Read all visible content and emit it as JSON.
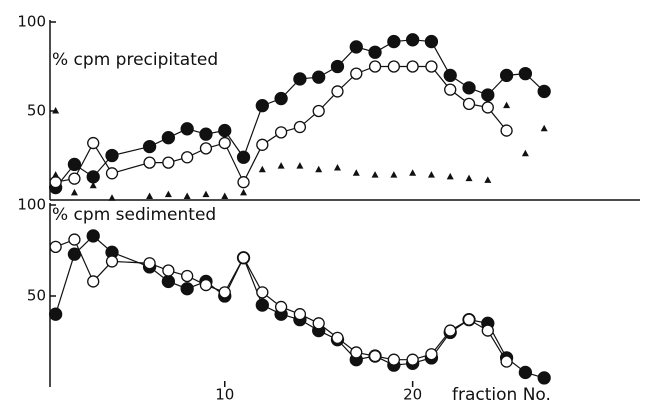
{
  "chart_data": [
    {
      "type": "scatter",
      "ylabel": "% cpm precipitated",
      "xlim": [
        0.7,
        32.1
      ],
      "ylim": [
        0,
        100
      ],
      "yticks": [
        50,
        100
      ],
      "series": [
        {
          "color": "#111111",
          "marker": "filled-circle",
          "line": true,
          "x": [
            1,
            2,
            3,
            4,
            6,
            7,
            8,
            9,
            10,
            11,
            12,
            13,
            14,
            15,
            16,
            17,
            18,
            19,
            20,
            21,
            22,
            23,
            24,
            25,
            26,
            27
          ],
          "values": [
            7,
            20,
            13,
            25,
            30,
            35,
            40,
            37,
            39,
            24,
            53,
            57,
            68,
            69,
            75,
            86,
            83,
            89,
            90,
            89,
            70,
            63,
            59,
            70,
            71,
            61
          ]
        },
        {
          "color": "#111111",
          "marker": "open-circle",
          "line": true,
          "x": [
            1,
            2,
            3,
            4,
            6,
            7,
            8,
            9,
            10,
            11,
            12,
            13,
            14,
            15,
            16,
            17,
            18,
            19,
            20,
            21,
            22,
            23,
            24,
            25
          ],
          "values": [
            10,
            12,
            32,
            15,
            21,
            21,
            24,
            29,
            32,
            10,
            31,
            38,
            41,
            50,
            61,
            71,
            75,
            75,
            75,
            75,
            62,
            54,
            52,
            39
          ]
        },
        {
          "color": "#111111",
          "marker": "triangle",
          "line": false,
          "x": [
            1,
            1,
            2,
            3,
            4,
            6,
            7,
            8,
            9,
            10,
            11,
            12,
            13,
            14,
            15,
            16,
            17,
            18,
            19,
            20,
            21,
            22,
            23,
            24,
            25,
            26,
            27
          ],
          "values": [
            50,
            14,
            4,
            8,
            1,
            2,
            3,
            2,
            3,
            2,
            4,
            17,
            19,
            19,
            17,
            18,
            15,
            14,
            14,
            15,
            14,
            13,
            12,
            11,
            53,
            26,
            40
          ]
        }
      ]
    },
    {
      "type": "scatter",
      "ylabel": "% cpm sedimented",
      "xlabel": "fraction No.",
      "xlim": [
        0.7,
        32.1
      ],
      "xticks": [
        10,
        20
      ],
      "ylim": [
        0,
        100
      ],
      "yticks": [
        50,
        100
      ],
      "series": [
        {
          "color": "#111111",
          "marker": "filled-circle",
          "line": true,
          "x": [
            1,
            2,
            3,
            4,
            6,
            7,
            8,
            9,
            10,
            11,
            12,
            13,
            14,
            15,
            16,
            17,
            18,
            19,
            20,
            21,
            22,
            23,
            24,
            25,
            26,
            27
          ],
          "values": [
            40,
            73,
            83,
            74,
            66,
            58,
            54,
            58,
            50,
            71,
            45,
            40,
            37,
            31,
            26,
            15,
            17,
            12,
            13,
            16,
            30,
            37,
            35,
            16,
            8,
            5
          ]
        },
        {
          "color": "#111111",
          "marker": "open-circle",
          "line": true,
          "x": [
            1,
            2,
            3,
            4,
            6,
            7,
            8,
            9,
            10,
            11,
            12,
            13,
            14,
            15,
            16,
            17,
            18,
            19,
            20,
            21,
            22,
            23,
            24,
            25
          ],
          "values": [
            77,
            81,
            58,
            69,
            68,
            64,
            61,
            56,
            52,
            71,
            52,
            44,
            40,
            35,
            27,
            19,
            17,
            15,
            15,
            18,
            31,
            37,
            31,
            14
          ]
        }
      ]
    }
  ]
}
